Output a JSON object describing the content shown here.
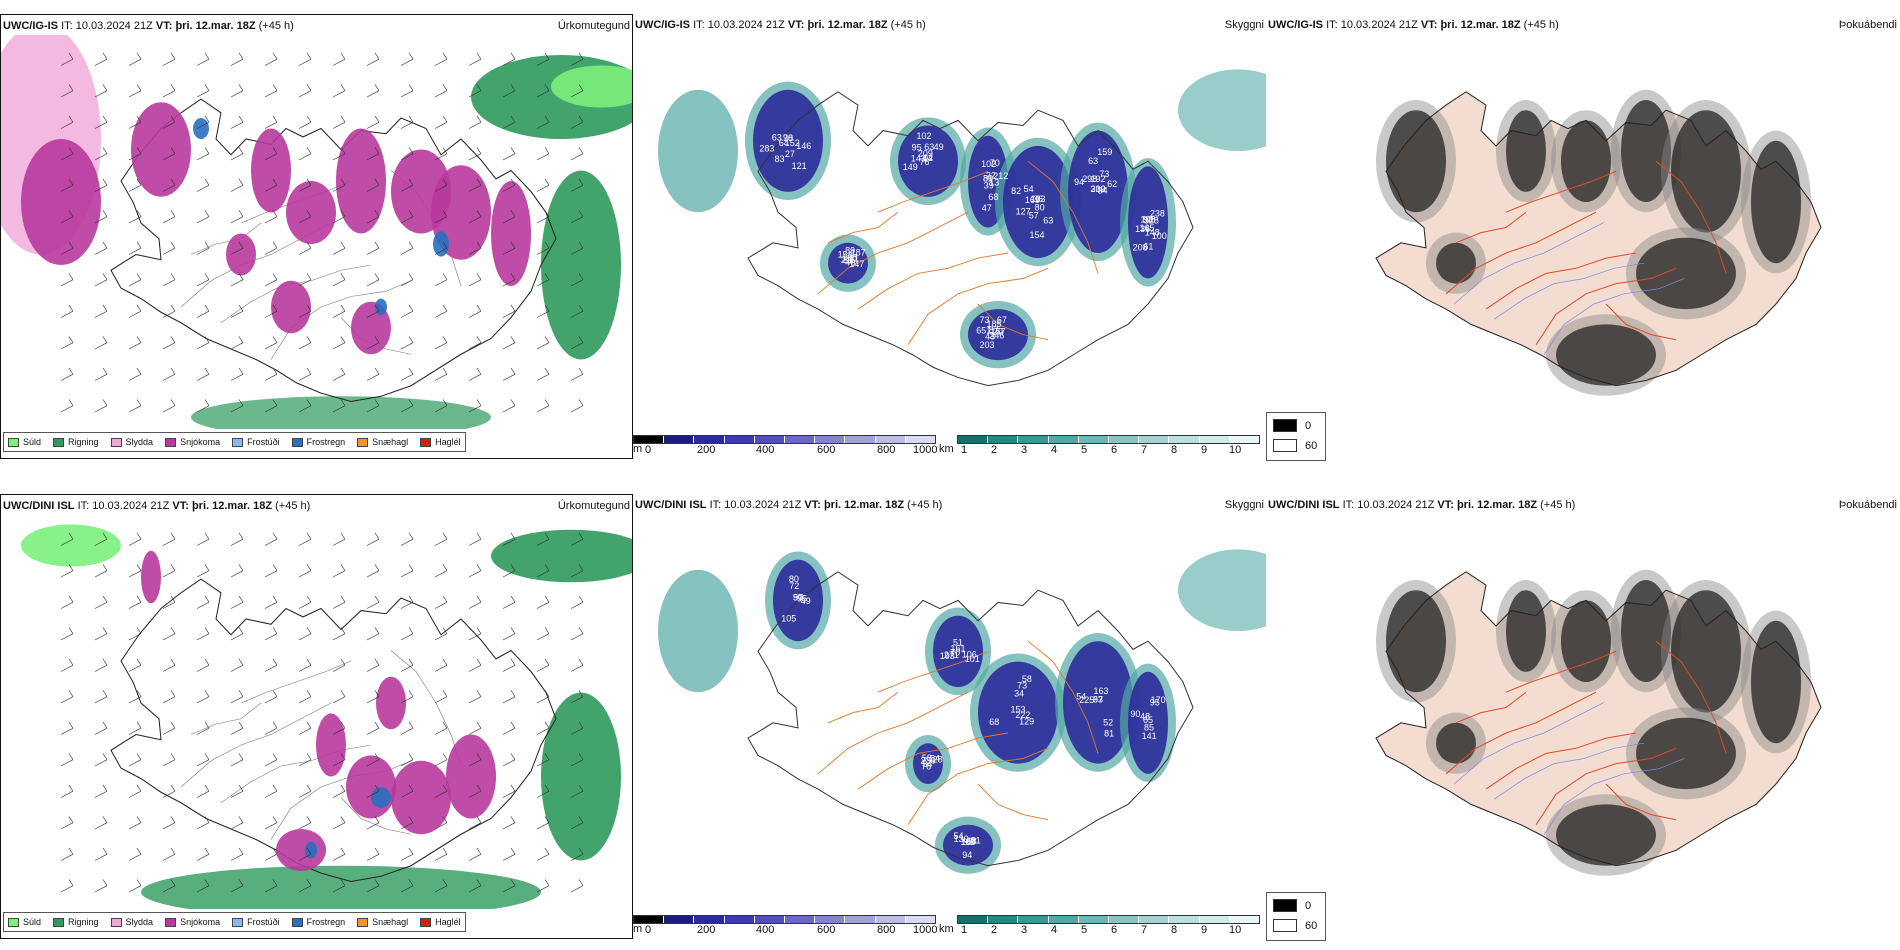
{
  "rows": [
    {
      "model": "UWC/IG-IS",
      "it_label": "IT:",
      "it_value": "10.03.2024 21Z",
      "vt_label": "VT:",
      "vt_value": "þri. 12.mar. 18Z",
      "lead": "(+45 h)"
    },
    {
      "model": "UWC/DINI ISL",
      "it_label": "IT:",
      "it_value": "10.03.2024 21Z",
      "vt_label": "VT:",
      "vt_value": "þri. 12.mar. 18Z",
      "lead": "(+45 h)"
    }
  ],
  "panel_titles": {
    "precip": "Úrkomutegund",
    "visibility": "Skyggni",
    "fog": "Þokuábendi"
  },
  "precip_legend": [
    {
      "label": "Súld",
      "color": "#7cf07c"
    },
    {
      "label": "Rigning",
      "color": "#2e9a5c"
    },
    {
      "label": "Slydda",
      "color": "#f0a8d8"
    },
    {
      "label": "Snjókoma",
      "color": "#b8389c"
    },
    {
      "label": "Frostúði",
      "color": "#8cb8f0"
    },
    {
      "label": "Frostregn",
      "color": "#2a6fc0"
    },
    {
      "label": "Snæhagl",
      "color": "#f09a20"
    },
    {
      "label": "Haglél",
      "color": "#e01818"
    }
  ],
  "visibility_scale": {
    "m_unit": "m",
    "m_ticks": [
      "0",
      "200",
      "400",
      "600",
      "800",
      "1000"
    ],
    "m_colors": [
      "#000000",
      "#1c1c7a",
      "#2b2b9a",
      "#3a3aae",
      "#5050b8",
      "#6a6ac4",
      "#8484d0",
      "#a0a0dc",
      "#bcbce6",
      "#dadaf2"
    ],
    "km_unit": "km",
    "km_ticks": [
      "1",
      "2",
      "3",
      "4",
      "5",
      "6",
      "7",
      "8",
      "9",
      "10"
    ],
    "km_colors": [
      "#1a6e6a",
      "#2a8682",
      "#3c9894",
      "#52a8a4",
      "#6cb8b4",
      "#86c6c2",
      "#a0d4d0",
      "#bae0de",
      "#d2ecea",
      "#eaf6f6"
    ]
  },
  "fog_key": [
    {
      "label": "0",
      "color": "#000000"
    },
    {
      "label": "60",
      "color": "#ffffff"
    }
  ],
  "precip_row1_labels": [],
  "vis_row1_labels": [
    "98",
    "76",
    "102",
    "63",
    "94",
    "108",
    "246",
    "154",
    "146",
    "149",
    "81",
    "80",
    "298",
    "238",
    "203",
    "211",
    "152",
    "143",
    "70",
    "154",
    "310",
    "328",
    "43",
    "89",
    "121",
    "04",
    "22",
    "57",
    "63",
    "100",
    "157",
    "108",
    "27",
    "95",
    "212",
    "133",
    "192",
    "148",
    "651",
    "187",
    "70",
    "209",
    "13",
    "127",
    "159",
    "98",
    "87",
    "81",
    "83",
    "102",
    "80",
    "169",
    "73",
    "61",
    "73",
    "81",
    "64",
    "63",
    "68",
    "82",
    "202",
    "165",
    "185",
    "147",
    "283",
    "12",
    "39",
    "54",
    "62",
    "208",
    "20",
    "40",
    "63",
    "49",
    "47",
    "36",
    "34",
    "136",
    "67"
  ],
  "vis_row2_labels": [
    "90",
    "70",
    "34",
    "52",
    "90",
    "95",
    "84",
    "72",
    "106",
    "68",
    "93",
    "85",
    "130",
    "54",
    "105",
    "161",
    "222",
    "225",
    "95",
    "94",
    "236",
    "95",
    "271",
    "73",
    "81",
    "65",
    "68",
    "76",
    "80",
    "101",
    "153",
    "163",
    "141",
    "54",
    "28",
    "57",
    "51",
    "129",
    "54",
    "170",
    "163",
    "58",
    "49",
    "193",
    "58",
    "67",
    "48",
    "81"
  ]
}
